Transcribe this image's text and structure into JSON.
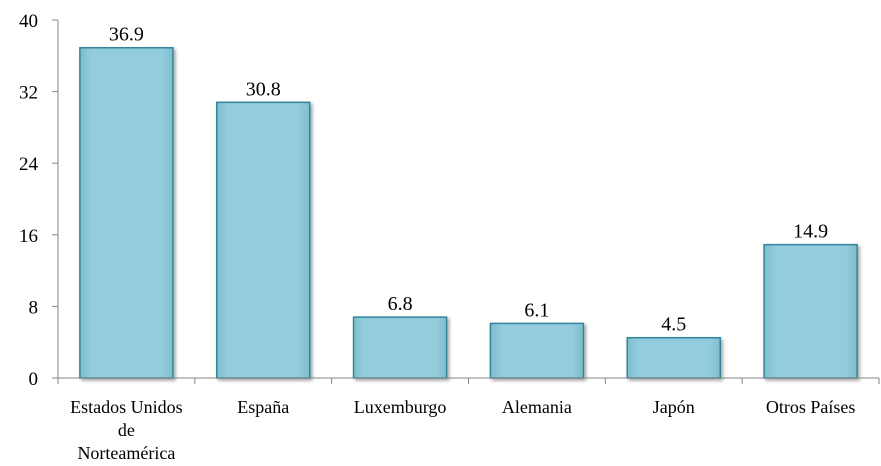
{
  "chart_data": {
    "type": "bar",
    "title": "",
    "xlabel": "",
    "ylabel": "",
    "categories": [
      [
        "Estados Unidos",
        "de",
        "Norteamérica"
      ],
      [
        "España"
      ],
      [
        "Luxemburgo"
      ],
      [
        "Alemania"
      ],
      [
        "Japón"
      ],
      [
        "Otros Países"
      ]
    ],
    "values": [
      36.9,
      30.8,
      6.8,
      6.1,
      4.5,
      14.9
    ],
    "value_labels": [
      "36.9",
      "30.8",
      "6.8",
      "6.1",
      "4.5",
      "14.9"
    ],
    "ylim": [
      0,
      40
    ],
    "yticks": [
      0,
      8,
      16,
      24,
      32,
      40
    ],
    "ytick_labels": [
      "0",
      "8",
      "16",
      "24",
      "32",
      "40"
    ],
    "grid": false,
    "legend": "none",
    "colors": {
      "bar_fill": "#93CDDD",
      "bar_stroke": "#31859C",
      "axis": "#868686"
    }
  }
}
